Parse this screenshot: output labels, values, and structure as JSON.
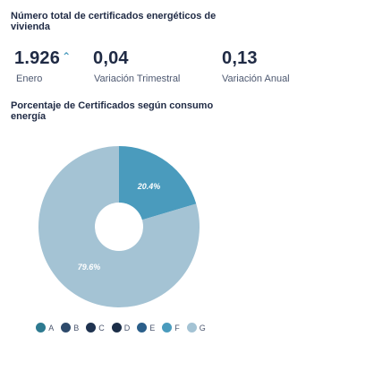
{
  "header": {
    "title": "Número total de certificados energéticos de vivienda"
  },
  "kpis": [
    {
      "value": "1.926",
      "trend_symbol": "⌃",
      "label": "Enero"
    },
    {
      "value": "0,04",
      "label": "Variación Trimestral"
    },
    {
      "value": "0,13",
      "label": "Variación Anual"
    }
  ],
  "colors": {
    "primary": "#4a9bbd",
    "secondary": "#a4c3d4",
    "dark_text": "#1f2a44",
    "legend_dark": "#3d5a80"
  },
  "chart_data": {
    "type": "pie",
    "title": "Porcentaje de Certificados según consumo energía",
    "categories": [
      "A",
      "B",
      "C",
      "D",
      "E",
      "F",
      "G"
    ],
    "values": [
      0,
      0,
      0,
      0,
      0,
      20.4,
      79.6
    ],
    "data_labels": [
      "",
      "",
      "",
      "",
      "",
      "20.4%",
      "79.6%"
    ],
    "colors": [
      "#2e7a90",
      "#2e4a6b",
      "#1f3350",
      "#1c2e48",
      "#2b5f8a",
      "#4a9bbd",
      "#a4c3d4"
    ],
    "legend_position": "bottom",
    "donut": true
  }
}
